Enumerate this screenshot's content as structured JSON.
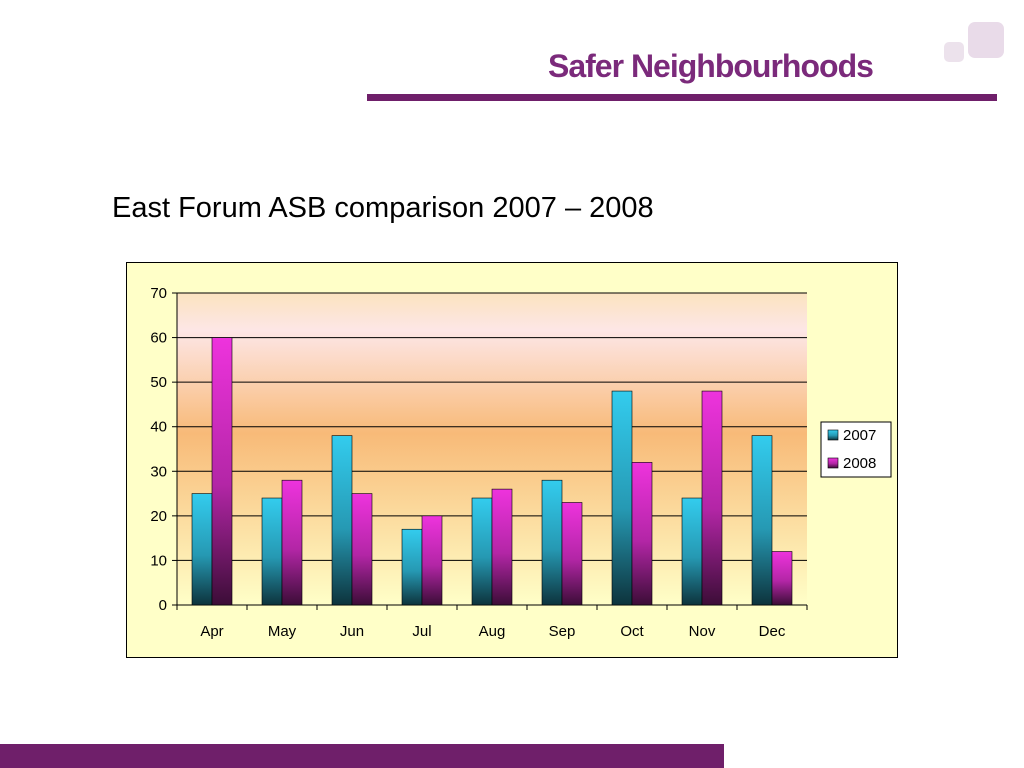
{
  "header": {
    "brand_name": "Safer Neighbourhoods",
    "colors": {
      "brand": "#7b2a7b",
      "rule": "#6f1f6a",
      "logo_light": "#ece2ec"
    }
  },
  "slide": {
    "title": "East Forum ASB comparison 2007 – 2008"
  },
  "chart_data": {
    "type": "bar",
    "title": "",
    "xlabel": "",
    "ylabel": "",
    "categories": [
      "Apr",
      "May",
      "Jun",
      "Jul",
      "Aug",
      "Sep",
      "Oct",
      "Nov",
      "Dec"
    ],
    "series": [
      {
        "name": "2007",
        "values": [
          25,
          24,
          38,
          17,
          24,
          28,
          48,
          24,
          38
        ],
        "color": "#33ccee"
      },
      {
        "name": "2008",
        "values": [
          60,
          28,
          25,
          20,
          26,
          23,
          32,
          48,
          12
        ],
        "color": "#ee33dd"
      }
    ],
    "ylim": [
      0,
      70
    ],
    "yticks": [
      0,
      10,
      20,
      30,
      40,
      50,
      60,
      70
    ],
    "grid": true,
    "legend_position": "right",
    "background": "#ffffc8"
  }
}
